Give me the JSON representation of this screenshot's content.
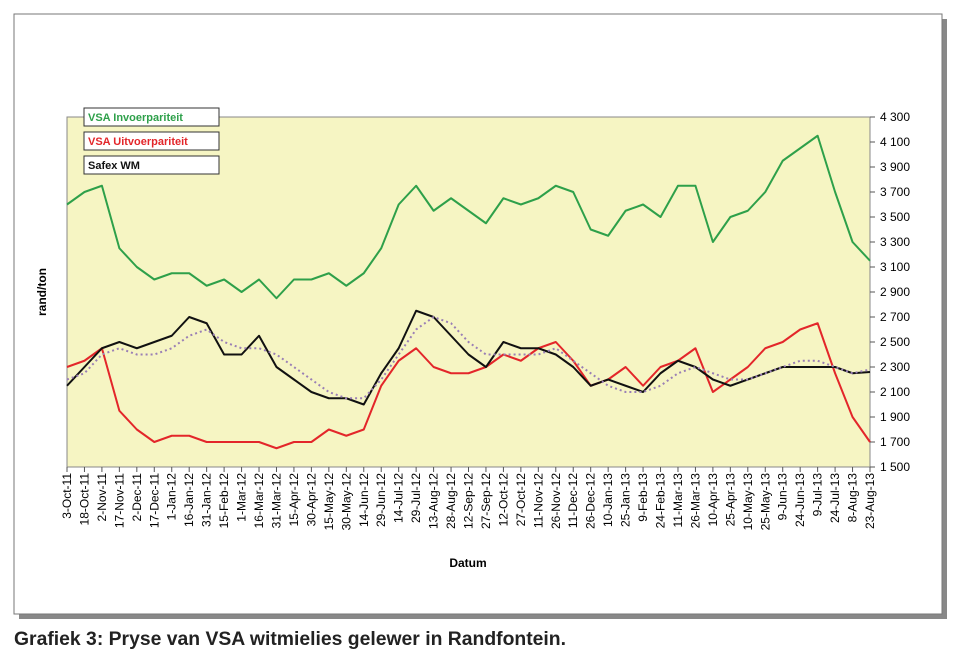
{
  "chart_data": {
    "type": "line",
    "caption": "Grafiek 3: Pryse van VSA witmielies gelewer in Randfontein.",
    "xlabel": "Datum",
    "ylabel": "rand/ton",
    "categories": [
      "3-Oct-11",
      "18-Oct-11",
      "2-Nov-11",
      "17-Nov-11",
      "2-Dec-11",
      "17-Dec-11",
      "1-Jan-12",
      "16-Jan-12",
      "31-Jan-12",
      "15-Feb-12",
      "1-Mar-12",
      "16-Mar-12",
      "31-Mar-12",
      "15-Apr-12",
      "30-Apr-12",
      "15-May-12",
      "30-May-12",
      "14-Jun-12",
      "29-Jun-12",
      "14-Jul-12",
      "29-Jul-12",
      "13-Aug-12",
      "28-Aug-12",
      "12-Sep-12",
      "27-Sep-12",
      "12-Oct-12",
      "27-Oct-12",
      "11-Nov-12",
      "26-Nov-12",
      "11-Dec-12",
      "26-Dec-12",
      "10-Jan-13",
      "25-Jan-13",
      "9-Feb-13",
      "24-Feb-13",
      "11-Mar-13",
      "26-Mar-13",
      "10-Apr-13",
      "25-Apr-13",
      "10-May-13",
      "25-May-13",
      "9-Jun-13",
      "24-Jun-13",
      "9-Jul-13",
      "24-Jul-13",
      "8-Aug-13",
      "23-Aug-13"
    ],
    "series": [
      {
        "name": "VSA Invoerpariteit",
        "color": "#2ea04a",
        "values": [
          3600,
          3700,
          3750,
          3250,
          3100,
          3000,
          3050,
          3050,
          2950,
          3000,
          2900,
          3000,
          2850,
          3000,
          3000,
          3050,
          2950,
          3050,
          3250,
          3600,
          3750,
          3550,
          3650,
          3550,
          3450,
          3650,
          3600,
          3650,
          3750,
          3700,
          3400,
          3350,
          3550,
          3600,
          3500,
          3750,
          3750,
          3300,
          3500,
          3550,
          3700,
          3950,
          4050,
          4150,
          3700,
          3300,
          3150
        ]
      },
      {
        "name": "VSA Uitvoerpariteit",
        "color": "#e3262a",
        "values": [
          2300,
          2350,
          2450,
          1950,
          1800,
          1700,
          1750,
          1750,
          1700,
          1700,
          1700,
          1700,
          1650,
          1700,
          1700,
          1800,
          1750,
          1800,
          2150,
          2350,
          2450,
          2300,
          2250,
          2250,
          2300,
          2400,
          2350,
          2450,
          2500,
          2350,
          2150,
          2200,
          2300,
          2150,
          2300,
          2350,
          2450,
          2100,
          2200,
          2300,
          2450,
          2500,
          2600,
          2650,
          2250,
          1900,
          1700
        ]
      },
      {
        "name": "Safex WM",
        "color": "#111111",
        "values": [
          2150,
          2300,
          2450,
          2500,
          2450,
          2500,
          2550,
          2700,
          2650,
          2400,
          2400,
          2550,
          2300,
          2200,
          2100,
          2050,
          2050,
          2000,
          2250,
          2450,
          2750,
          2700,
          2550,
          2400,
          2300,
          2500,
          2450,
          2450,
          2400,
          2300,
          2150,
          2200,
          2150,
          2100,
          2250,
          2350,
          2300,
          2200,
          2150,
          2200,
          2250,
          2300,
          2300,
          2300,
          2300,
          2250,
          2260
        ]
      },
      {
        "color": "#9a7fb5",
        "dashed": true,
        "values": [
          2200,
          2250,
          2400,
          2450,
          2400,
          2400,
          2450,
          2550,
          2600,
          2500,
          2450,
          2450,
          2400,
          2300,
          2200,
          2100,
          2050,
          2050,
          2200,
          2400,
          2600,
          2700,
          2650,
          2500,
          2400,
          2400,
          2400,
          2400,
          2450,
          2350,
          2250,
          2150,
          2100,
          2100,
          2150,
          2250,
          2300,
          2250,
          2200,
          2200,
          2250,
          2300,
          2350,
          2350,
          2300,
          2250,
          2280
        ]
      }
    ],
    "ylim": [
      1500,
      4300
    ],
    "yticks": [
      {
        "value": 1500,
        "label": "1 500"
      },
      {
        "value": 1700,
        "label": "1 700"
      },
      {
        "value": 1900,
        "label": "1 900"
      },
      {
        "value": 2100,
        "label": "2 100"
      },
      {
        "value": 2300,
        "label": "2 300"
      },
      {
        "value": 2500,
        "label": "2 500"
      },
      {
        "value": 2700,
        "label": "2 700"
      },
      {
        "value": 2900,
        "label": "2 900"
      },
      {
        "value": 3100,
        "label": "3 100"
      },
      {
        "value": 3300,
        "label": "3 300"
      },
      {
        "value": 3500,
        "label": "3 500"
      },
      {
        "value": 3700,
        "label": "3 700"
      },
      {
        "value": 3900,
        "label": "3 900"
      },
      {
        "value": 4100,
        "label": "4 100"
      },
      {
        "value": 4300,
        "label": "4 300"
      }
    ],
    "plot_background": "#f6f5c3"
  }
}
